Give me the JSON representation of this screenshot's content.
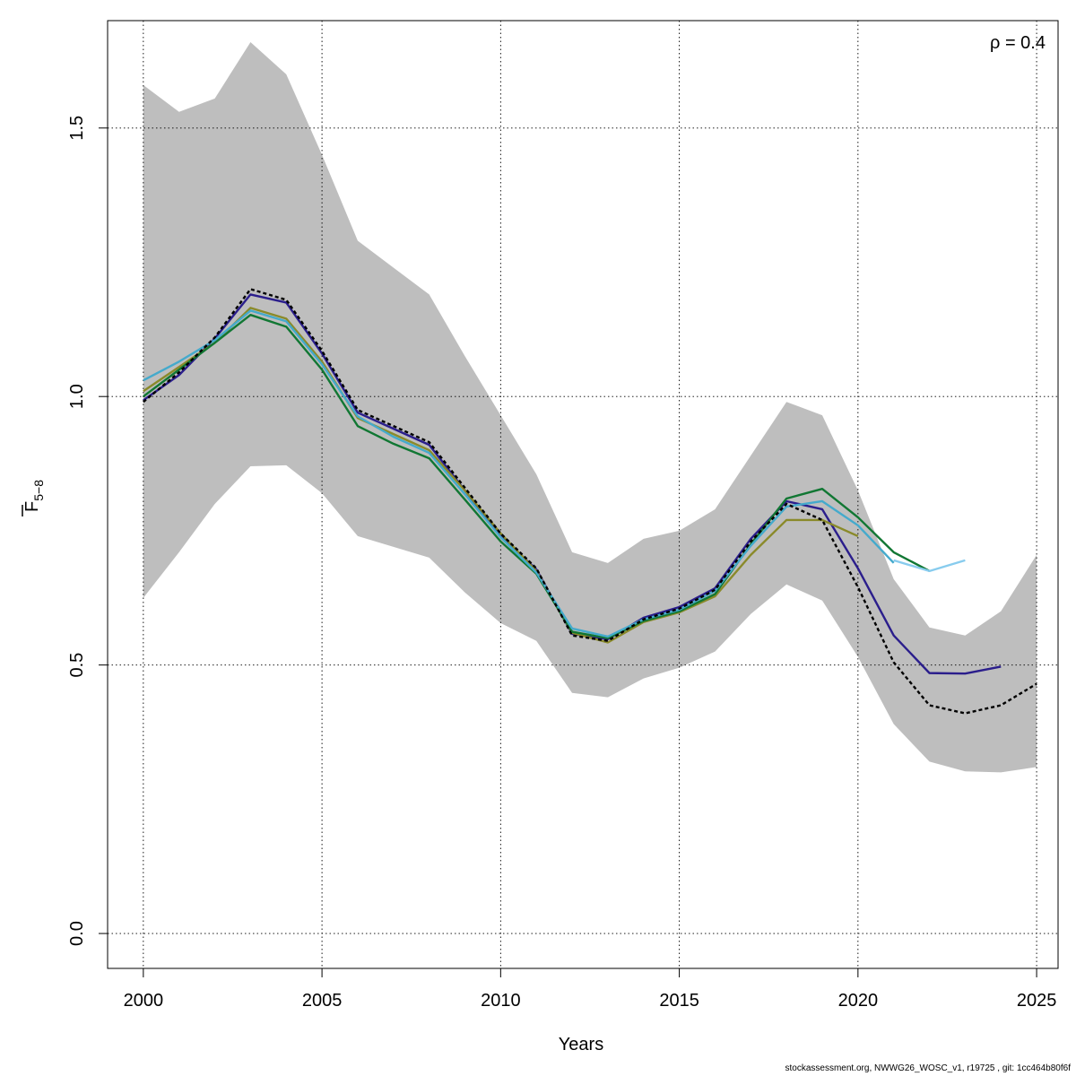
{
  "chart_data": {
    "type": "line",
    "xlabel": "Years",
    "ylabel_main": "F",
    "ylabel_sub": "5−8",
    "annotation": "ρ = 0.4",
    "xlim": [
      1999,
      2025.6
    ],
    "ylim": [
      -0.065,
      1.7
    ],
    "x_ticks": [
      2000,
      2005,
      2010,
      2015,
      2020,
      2025
    ],
    "y_ticks": [
      0.0,
      0.5,
      1.0,
      1.5
    ],
    "y_tick_labels": [
      "0.0",
      "0.5",
      "1.0",
      "1.5"
    ],
    "grid": true,
    "band": {
      "color": "#bebebe",
      "x": [
        2000,
        2001,
        2002,
        2003,
        2004,
        2005,
        2006,
        2007,
        2008,
        2009,
        2010,
        2011,
        2012,
        2013,
        2014,
        2015,
        2016,
        2017,
        2018,
        2019,
        2020,
        2021,
        2022,
        2023,
        2024,
        2025
      ],
      "upper": [
        1.58,
        1.53,
        1.555,
        1.66,
        1.6,
        1.45,
        1.29,
        1.24,
        1.19,
        1.075,
        0.965,
        0.855,
        0.71,
        0.69,
        0.735,
        0.75,
        0.79,
        0.89,
        0.99,
        0.965,
        0.825,
        0.66,
        0.57,
        0.555,
        0.6,
        0.705
      ],
      "lower": [
        0.625,
        0.71,
        0.8,
        0.87,
        0.872,
        0.82,
        0.74,
        0.72,
        0.7,
        0.635,
        0.578,
        0.545,
        0.448,
        0.44,
        0.475,
        0.495,
        0.525,
        0.595,
        0.65,
        0.62,
        0.515,
        0.39,
        0.32,
        0.302,
        0.3,
        0.31
      ]
    },
    "series": [
      {
        "color": "#000000",
        "dashed": true,
        "x": [
          2000,
          2001,
          2002,
          2003,
          2004,
          2005,
          2006,
          2007,
          2008,
          2009,
          2010,
          2011,
          2012,
          2013,
          2014,
          2015,
          2016,
          2017,
          2018,
          2019,
          2020,
          2021,
          2022,
          2023,
          2024,
          2025
        ],
        "values": [
          0.99,
          1.045,
          1.11,
          1.2,
          1.18,
          1.085,
          0.975,
          0.945,
          0.915,
          0.83,
          0.745,
          0.68,
          0.555,
          0.545,
          0.585,
          0.605,
          0.64,
          0.73,
          0.8,
          0.77,
          0.645,
          0.505,
          0.425,
          0.41,
          0.425,
          0.465
        ]
      },
      {
        "color": "#2b1e8c",
        "dashed": false,
        "x": [
          2000,
          2001,
          2002,
          2003,
          2004,
          2005,
          2006,
          2007,
          2008,
          2009,
          2010,
          2011,
          2012,
          2013,
          2014,
          2015,
          2016,
          2017,
          2018,
          2019,
          2020,
          2021,
          2022,
          2023,
          2024
        ],
        "values": [
          0.993,
          1.04,
          1.108,
          1.19,
          1.175,
          1.08,
          0.97,
          0.94,
          0.91,
          0.825,
          0.74,
          0.678,
          0.558,
          0.548,
          0.588,
          0.608,
          0.643,
          0.735,
          0.805,
          0.79,
          0.68,
          0.555,
          0.485,
          0.484,
          0.497
        ]
      },
      {
        "color": "#8a8a2a",
        "dashed": false,
        "x": [
          2000,
          2001,
          2002,
          2003,
          2004,
          2005,
          2006,
          2007,
          2008,
          2009,
          2010,
          2011,
          2012,
          2013,
          2014,
          2015,
          2016,
          2017,
          2018,
          2019,
          2020
        ],
        "values": [
          1.01,
          1.055,
          1.1,
          1.165,
          1.145,
          1.065,
          0.96,
          0.93,
          0.9,
          0.825,
          0.745,
          0.675,
          0.56,
          0.542,
          0.58,
          0.598,
          0.628,
          0.705,
          0.77,
          0.77,
          0.74
        ]
      },
      {
        "color": "#117733",
        "dashed": false,
        "x": [
          2000,
          2001,
          2002,
          2003,
          2004,
          2005,
          2006,
          2007,
          2008,
          2009,
          2010,
          2011,
          2012,
          2013,
          2014,
          2015,
          2016,
          2017,
          2018,
          2019,
          2020,
          2021,
          2022
        ],
        "values": [
          1.0,
          1.05,
          1.1,
          1.152,
          1.13,
          1.05,
          0.945,
          0.912,
          0.885,
          0.808,
          0.73,
          0.67,
          0.562,
          0.55,
          0.582,
          0.6,
          0.632,
          0.725,
          0.81,
          0.828,
          0.775,
          0.71,
          0.675
        ]
      },
      {
        "color": "#44aacc",
        "dashed": false,
        "x": [
          2000,
          2001,
          2002,
          2003,
          2004,
          2005,
          2006,
          2007,
          2008,
          2009,
          2010,
          2011,
          2012,
          2013,
          2014,
          2015,
          2016,
          2017,
          2018,
          2019,
          2020,
          2021
        ],
        "values": [
          1.03,
          1.065,
          1.105,
          1.16,
          1.14,
          1.06,
          0.963,
          0.925,
          0.895,
          0.818,
          0.738,
          0.672,
          0.568,
          0.553,
          0.585,
          0.603,
          0.638,
          0.722,
          0.795,
          0.805,
          0.76,
          0.69
        ]
      },
      {
        "color": "#88ccee",
        "dashed": false,
        "x": [
          2021,
          2022,
          2023
        ],
        "values": [
          0.695,
          0.675,
          0.695
        ]
      }
    ]
  },
  "footer": "stockassessment.org, NWWG26_WOSC_v1, r19725 , git: 1cc464b80f6f"
}
